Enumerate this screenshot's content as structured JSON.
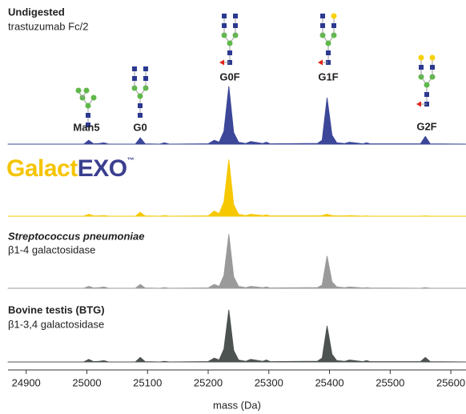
{
  "chart_data": {
    "type": "area",
    "xlabel": "mass (Da)",
    "xlim": [
      24870,
      25625
    ],
    "xticks": [
      24900,
      25000,
      25100,
      25200,
      25300,
      25400,
      25500,
      25600
    ],
    "ylim": [
      0,
      100
    ],
    "annotations": [
      "Man5",
      "G0",
      "G0F",
      "G1F",
      "G2F"
    ],
    "x": [
      24870,
      24995,
      25003,
      25011,
      25020,
      25028,
      25036,
      25080,
      25088,
      25096,
      25120,
      25128,
      25136,
      25200,
      25210,
      25218,
      25226,
      25234,
      25242,
      25250,
      25262,
      25270,
      25290,
      25296,
      25302,
      25380,
      25388,
      25396,
      25404,
      25412,
      25425,
      25433,
      25455,
      25461,
      25467,
      25550,
      25558,
      25566,
      25625
    ],
    "series": [
      {
        "name": "Undigested",
        "description": "trastuzumab Fc/2",
        "color": "#3c4799",
        "values": [
          0,
          0,
          6,
          0.5,
          1,
          2,
          0,
          0,
          10,
          0.5,
          0,
          2,
          0,
          0.5,
          6,
          3,
          20,
          90,
          18,
          3,
          1,
          4,
          1,
          3,
          0.5,
          1,
          6,
          72,
          14,
          2,
          1,
          3,
          0.5,
          2,
          0.5,
          0.5,
          12,
          0.5,
          0
        ]
      },
      {
        "name_parts": [
          {
            "text": "Galact",
            "color": "#f5c400"
          },
          {
            "text": "EXO",
            "color": "#3b3f8f"
          },
          {
            "text": "™",
            "color": "#3b3f8f"
          }
        ],
        "color": "#f5c800",
        "values": [
          0,
          0,
          3,
          0.5,
          0.5,
          1,
          0,
          0,
          6,
          0.5,
          0,
          1,
          0,
          0.5,
          8,
          4,
          22,
          88,
          18,
          3,
          1,
          3,
          1,
          2,
          0.5,
          0.5,
          1,
          3,
          1,
          0.5,
          0.5,
          1,
          0,
          0.5,
          0,
          0,
          0.5,
          0,
          0
        ]
      },
      {
        "name": "Streptococcus pneumoniae",
        "description": "β1-4 galactosidase",
        "color": "#9a9a9a",
        "values": [
          0,
          0,
          3,
          0.5,
          1,
          2,
          0,
          0,
          6,
          0.5,
          0,
          1,
          0,
          0.5,
          6,
          3,
          20,
          84,
          18,
          3,
          1,
          3,
          1,
          2,
          0.5,
          1,
          5,
          50,
          10,
          2,
          1,
          2,
          0.5,
          1,
          0.5,
          0,
          1,
          0,
          0
        ]
      },
      {
        "name": "Bovine testis (BTG)",
        "description": "β1-3,4 galactosidase",
        "color": "#4d5350",
        "values": [
          0,
          0,
          4,
          0.5,
          1,
          2,
          0,
          0,
          7,
          0.5,
          0,
          1,
          0,
          0.5,
          6,
          3,
          20,
          81,
          18,
          3,
          1,
          4,
          1,
          3,
          0.5,
          1,
          6,
          56,
          12,
          2,
          1,
          3,
          0.5,
          2,
          0.5,
          0.5,
          7,
          0.5,
          0
        ]
      }
    ]
  }
}
